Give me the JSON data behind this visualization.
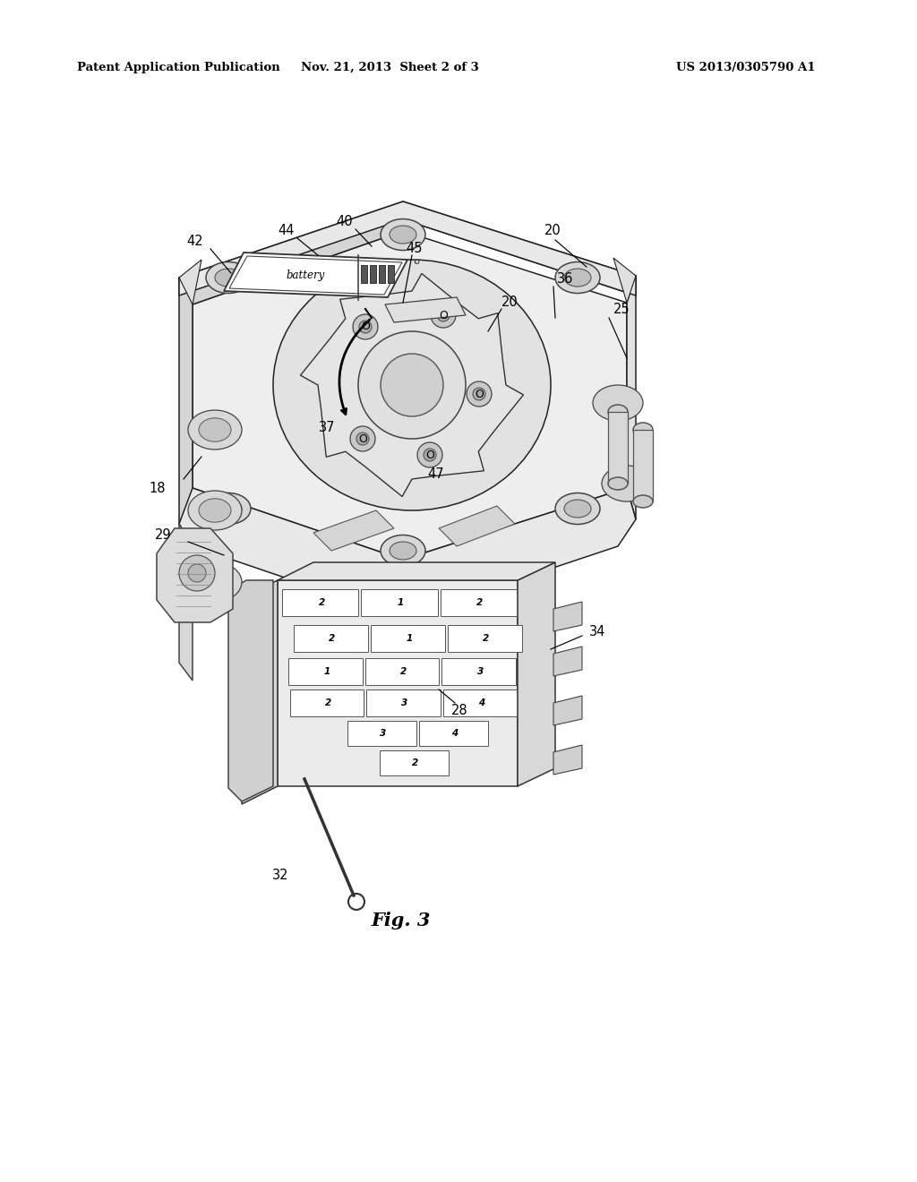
{
  "background_color": "#ffffff",
  "header_left": "Patent Application Publication",
  "header_center": "Nov. 21, 2013  Sheet 2 of 3",
  "header_right": "US 2013/0305790 A1",
  "figure_label": "Fig. 3",
  "lw": 1.1,
  "device_color_top": "#f2f2f2",
  "device_color_side": "#e0e0e0",
  "device_color_dark": "#cccccc",
  "line_color": "#222222"
}
